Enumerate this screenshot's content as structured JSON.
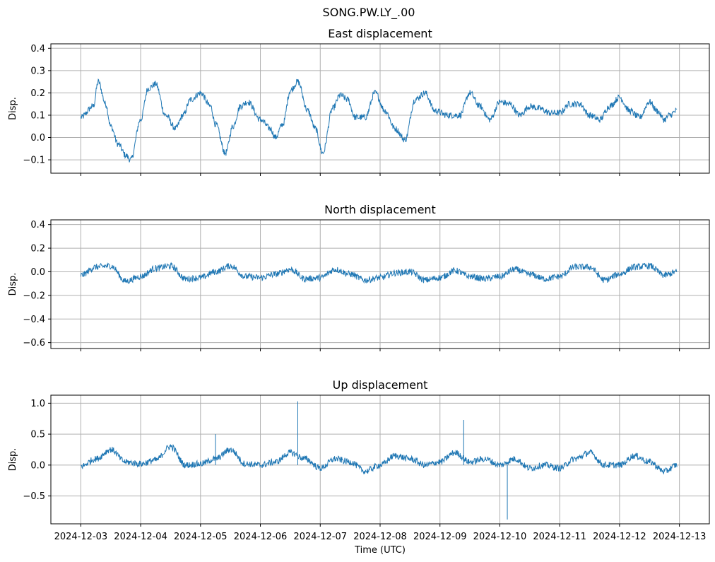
{
  "figure": {
    "suptitle": "SONG.PW.LY_.00",
    "xlabel": "Time (UTC)",
    "line_color": "#1f77b4",
    "grid_color": "#b0b0b0"
  },
  "chart_data": [
    {
      "type": "line",
      "title": "East displacement",
      "xlabel": "",
      "ylabel": "Disp.",
      "x_range": [
        "2024-12-02T12:00",
        "2024-12-13T12:00"
      ],
      "ylim": [
        -0.16,
        0.42
      ],
      "yticks": [
        -0.1,
        0.0,
        0.1,
        0.2,
        0.3,
        0.4
      ],
      "yticklabels": [
        "−0.1",
        "0.0",
        "0.1",
        "0.2",
        "0.3",
        "0.4"
      ],
      "grid": true,
      "series": [
        {
          "x": [
            "2024-12-03T00:00",
            "2024-12-03T05:00",
            "2024-12-03T07:00",
            "2024-12-03T10:00",
            "2024-12-03T12:00",
            "2024-12-03T15:00",
            "2024-12-03T18:00",
            "2024-12-03T20:00",
            "2024-12-04T00:00",
            "2024-12-04T03:00",
            "2024-12-04T06:00",
            "2024-12-04T10:00",
            "2024-12-04T14:00",
            "2024-12-04T17:00",
            "2024-12-04T20:00",
            "2024-12-05T00:00",
            "2024-12-05T04:00",
            "2024-12-05T06:00",
            "2024-12-05T10:00",
            "2024-12-05T13:00",
            "2024-12-05T16:00",
            "2024-12-05T19:00",
            "2024-12-06T00:00",
            "2024-12-06T04:00",
            "2024-12-06T06:00",
            "2024-12-06T09:00",
            "2024-12-06T12:00",
            "2024-12-06T15:00",
            "2024-12-06T19:00",
            "2024-12-06T22:00",
            "2024-12-07T01:00",
            "2024-12-07T05:00",
            "2024-12-07T08:00",
            "2024-12-07T11:00",
            "2024-12-07T14:00",
            "2024-12-07T18:00",
            "2024-12-07T22:00",
            "2024-12-08T02:00",
            "2024-12-08T06:00",
            "2024-12-08T10:00",
            "2024-12-08T14:00",
            "2024-12-08T18:00",
            "2024-12-08T22:00",
            "2024-12-09T03:00",
            "2024-12-09T08:00",
            "2024-12-09T12:00",
            "2024-12-09T16:00",
            "2024-12-09T20:00",
            "2024-12-10T00:00",
            "2024-12-10T04:00",
            "2024-12-10T08:00",
            "2024-12-10T12:00",
            "2024-12-10T16:00",
            "2024-12-10T20:00",
            "2024-12-11T00:00",
            "2024-12-11T04:00",
            "2024-12-11T08:00",
            "2024-12-11T12:00",
            "2024-12-11T16:00",
            "2024-12-11T20:00",
            "2024-12-12T00:00",
            "2024-12-12T04:00",
            "2024-12-12T08:00",
            "2024-12-12T12:00",
            "2024-12-12T15:00",
            "2024-12-12T18:00",
            "2024-12-12T20:00",
            "2024-12-12T23:00"
          ],
          "y": [
            0.09,
            0.14,
            0.25,
            0.15,
            0.05,
            -0.03,
            -0.08,
            -0.1,
            0.08,
            0.22,
            0.24,
            0.1,
            0.04,
            0.1,
            0.17,
            0.2,
            0.14,
            0.06,
            -0.07,
            0.05,
            0.14,
            0.16,
            0.08,
            0.04,
            0.0,
            0.06,
            0.21,
            0.25,
            0.12,
            0.04,
            -0.07,
            0.13,
            0.19,
            0.17,
            0.09,
            0.09,
            0.2,
            0.12,
            0.04,
            -0.01,
            0.17,
            0.2,
            0.12,
            0.1,
            0.1,
            0.2,
            0.14,
            0.08,
            0.16,
            0.15,
            0.1,
            0.14,
            0.13,
            0.11,
            0.11,
            0.15,
            0.15,
            0.1,
            0.08,
            0.14,
            0.18,
            0.12,
            0.09,
            0.16,
            0.12,
            0.08,
            0.1,
            0.12
          ]
        }
      ]
    },
    {
      "type": "line",
      "title": "North displacement",
      "xlabel": "",
      "ylabel": "Disp.",
      "x_range": [
        "2024-12-02T12:00",
        "2024-12-13T12:00"
      ],
      "ylim": [
        -0.65,
        0.44
      ],
      "yticks": [
        -0.6,
        -0.4,
        -0.2,
        0.0,
        0.2,
        0.4
      ],
      "yticklabels": [
        "−0.6",
        "−0.4",
        "−0.2",
        "0.0",
        "0.2",
        "0.4"
      ],
      "grid": true,
      "series": [
        {
          "x": [
            "2024-12-03T00:00",
            "2024-12-03T06:00",
            "2024-12-03T12:00",
            "2024-12-03T18:00",
            "2024-12-04T00:00",
            "2024-12-04T06:00",
            "2024-12-04T12:00",
            "2024-12-04T18:00",
            "2024-12-05T00:00",
            "2024-12-05T06:00",
            "2024-12-05T12:00",
            "2024-12-05T18:00",
            "2024-12-06T00:00",
            "2024-12-06T06:00",
            "2024-12-06T12:00",
            "2024-12-06T18:00",
            "2024-12-07T00:00",
            "2024-12-07T06:00",
            "2024-12-07T12:00",
            "2024-12-07T18:00",
            "2024-12-08T00:00",
            "2024-12-08T06:00",
            "2024-12-08T12:00",
            "2024-12-08T18:00",
            "2024-12-09T00:00",
            "2024-12-09T06:00",
            "2024-12-09T12:00",
            "2024-12-09T18:00",
            "2024-12-10T00:00",
            "2024-12-10T06:00",
            "2024-12-10T12:00",
            "2024-12-10T18:00",
            "2024-12-11T00:00",
            "2024-12-11T06:00",
            "2024-12-11T12:00",
            "2024-12-11T18:00",
            "2024-12-12T00:00",
            "2024-12-12T06:00",
            "2024-12-12T12:00",
            "2024-12-12T18:00",
            "2024-12-12T23:00"
          ],
          "y": [
            -0.03,
            0.04,
            0.05,
            -0.08,
            -0.04,
            0.03,
            0.05,
            -0.06,
            -0.05,
            0.0,
            0.05,
            -0.04,
            -0.05,
            -0.02,
            0.02,
            -0.06,
            -0.05,
            0.02,
            -0.02,
            -0.07,
            -0.05,
            -0.01,
            0.0,
            -0.07,
            -0.05,
            0.01,
            -0.04,
            -0.06,
            -0.04,
            0.02,
            -0.02,
            -0.06,
            -0.04,
            0.04,
            0.04,
            -0.07,
            -0.02,
            0.04,
            0.05,
            -0.03,
            0.0
          ]
        }
      ]
    },
    {
      "type": "line",
      "title": "Up displacement",
      "xlabel": "Time (UTC)",
      "ylabel": "Disp.",
      "x_range": [
        "2024-12-02T12:00",
        "2024-12-13T12:00"
      ],
      "ylim": [
        -0.95,
        1.13
      ],
      "yticks": [
        -0.5,
        0.0,
        0.5,
        1.0
      ],
      "yticklabels": [
        "−0.5",
        "0.0",
        "0.5",
        "1.0"
      ],
      "xticks": [
        "2024-12-03",
        "2024-12-04",
        "2024-12-05",
        "2024-12-06",
        "2024-12-07",
        "2024-12-08",
        "2024-12-09",
        "2024-12-10",
        "2024-12-11",
        "2024-12-12",
        "2024-12-13"
      ],
      "grid": true,
      "series": [
        {
          "x": [
            "2024-12-03T00:00",
            "2024-12-03T06:00",
            "2024-12-03T12:00",
            "2024-12-03T18:00",
            "2024-12-04T00:00",
            "2024-12-04T06:00",
            "2024-12-04T12:00",
            "2024-12-04T18:00",
            "2024-12-05T00:00",
            "2024-12-05T06:00",
            "2024-12-05T12:00",
            "2024-12-05T18:00",
            "2024-12-06T00:00",
            "2024-12-06T06:00",
            "2024-12-06T12:00",
            "2024-12-06T18:00",
            "2024-12-07T00:00",
            "2024-12-07T06:00",
            "2024-12-07T12:00",
            "2024-12-07T18:00",
            "2024-12-08T00:00",
            "2024-12-08T06:00",
            "2024-12-08T12:00",
            "2024-12-08T18:00",
            "2024-12-09T00:00",
            "2024-12-09T06:00",
            "2024-12-09T12:00",
            "2024-12-09T18:00",
            "2024-12-10T00:00",
            "2024-12-10T06:00",
            "2024-12-10T12:00",
            "2024-12-10T18:00",
            "2024-12-11T00:00",
            "2024-12-11T06:00",
            "2024-12-11T12:00",
            "2024-12-11T18:00",
            "2024-12-12T00:00",
            "2024-12-12T06:00",
            "2024-12-12T12:00",
            "2024-12-12T18:00",
            "2024-12-12T23:00"
          ],
          "y": [
            -0.02,
            0.1,
            0.25,
            0.05,
            0.02,
            0.08,
            0.3,
            0.0,
            0.02,
            0.1,
            0.25,
            0.02,
            0.0,
            0.05,
            0.2,
            0.1,
            -0.05,
            0.1,
            0.05,
            -0.1,
            0.0,
            0.15,
            0.1,
            0.0,
            0.05,
            0.2,
            0.05,
            0.1,
            0.0,
            0.1,
            -0.05,
            0.0,
            -0.05,
            0.1,
            0.2,
            0.0,
            0.0,
            0.15,
            0.05,
            -0.1,
            0.0
          ]
        }
      ],
      "spikes": [
        {
          "x": "2024-12-06T15:00",
          "y": 1.03
        },
        {
          "x": "2024-12-09T09:30",
          "y": 0.73
        },
        {
          "x": "2024-12-10T03:00",
          "y": -0.88
        },
        {
          "x": "2024-12-05T06:00",
          "y": 0.5
        }
      ]
    }
  ]
}
